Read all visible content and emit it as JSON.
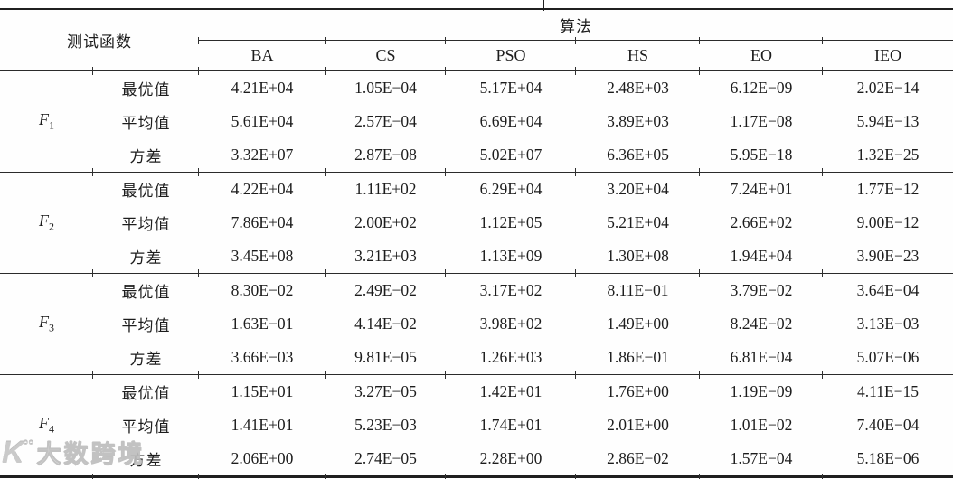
{
  "table": {
    "header": {
      "function_col": "测试函数",
      "algorithm_group": "算法",
      "algorithms": [
        "BA",
        "CS",
        "PSO",
        "HS",
        "EO",
        "IEO"
      ]
    },
    "groups": [
      {
        "function_base": "F",
        "function_sub": "1",
        "rows": [
          {
            "label": "最优值",
            "values": [
              "4.21E+04",
              "1.05E−04",
              "5.17E+04",
              "2.48E+03",
              "6.12E−09",
              "2.02E−14"
            ]
          },
          {
            "label": "平均值",
            "values": [
              "5.61E+04",
              "2.57E−04",
              "6.69E+04",
              "3.89E+03",
              "1.17E−08",
              "5.94E−13"
            ]
          },
          {
            "label": "方差",
            "values": [
              "3.32E+07",
              "2.87E−08",
              "5.02E+07",
              "6.36E+05",
              "5.95E−18",
              "1.32E−25"
            ]
          }
        ]
      },
      {
        "function_base": "F",
        "function_sub": "2",
        "rows": [
          {
            "label": "最优值",
            "values": [
              "4.22E+04",
              "1.11E+02",
              "6.29E+04",
              "3.20E+04",
              "7.24E+01",
              "1.77E−12"
            ]
          },
          {
            "label": "平均值",
            "values": [
              "7.86E+04",
              "2.00E+02",
              "1.12E+05",
              "5.21E+04",
              "2.66E+02",
              "9.00E−12"
            ]
          },
          {
            "label": "方差",
            "values": [
              "3.45E+08",
              "3.21E+03",
              "1.13E+09",
              "1.30E+08",
              "1.94E+04",
              "3.90E−23"
            ]
          }
        ]
      },
      {
        "function_base": "F",
        "function_sub": "3",
        "rows": [
          {
            "label": "最优值",
            "values": [
              "8.30E−02",
              "2.49E−02",
              "3.17E+02",
              "8.11E−01",
              "3.79E−02",
              "3.64E−04"
            ]
          },
          {
            "label": "平均值",
            "values": [
              "1.63E−01",
              "4.14E−02",
              "3.98E+02",
              "1.49E+00",
              "8.24E−02",
              "3.13E−03"
            ]
          },
          {
            "label": "方差",
            "values": [
              "3.66E−03",
              "9.81E−05",
              "1.26E+03",
              "1.86E−01",
              "6.81E−04",
              "5.07E−06"
            ]
          }
        ]
      },
      {
        "function_base": "F",
        "function_sub": "4",
        "rows": [
          {
            "label": "最优值",
            "values": [
              "1.15E+01",
              "3.27E−05",
              "1.42E+01",
              "1.76E+00",
              "1.19E−09",
              "4.11E−15"
            ]
          },
          {
            "label": "平均值",
            "values": [
              "1.41E+01",
              "5.23E−03",
              "1.74E+01",
              "2.01E+00",
              "1.01E−02",
              "7.40E−04"
            ]
          },
          {
            "label": "方差",
            "values": [
              "2.06E+00",
              "2.74E−05",
              "2.28E+00",
              "2.86E−02",
              "1.57E−04",
              "5.18E−06"
            ]
          }
        ]
      }
    ]
  },
  "watermark": {
    "logo_base": "K",
    "logo_sup": "°°",
    "text": "大数跨境"
  },
  "colors": {
    "rule_line": "#2b2b2b",
    "text": "#1c1c1c",
    "watermark": "#c6c6c6",
    "background": "#fefefe"
  }
}
